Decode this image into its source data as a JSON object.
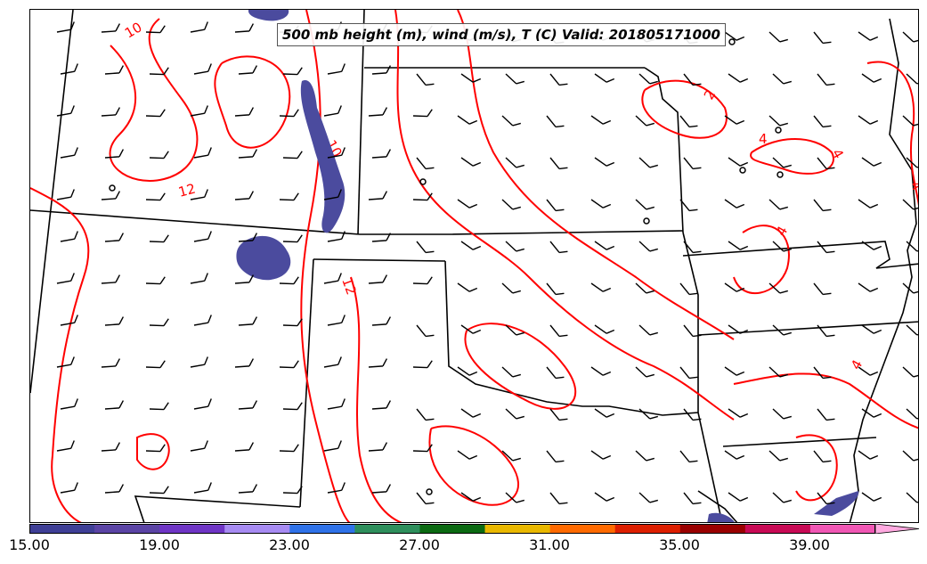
{
  "title": "500 mb height (m), wind (m/s), T (C) Valid: 201805171000",
  "colors": {
    "temperature_contour": "#ff0000",
    "boundary": "#000000",
    "wind_barb": "#000000",
    "shaded_feature": "#4b4b9e"
  },
  "contour_labels": [
    "10",
    "12",
    "10",
    "12",
    "2",
    "4",
    "4",
    "4",
    "4",
    "4"
  ],
  "colorbar": {
    "tick_labels": [
      "15.00",
      "19.00",
      "23.00",
      "27.00",
      "31.00",
      "35.00",
      "39.00"
    ],
    "bins": [
      "#3f3f96",
      "#5b44a5",
      "#6f35c5",
      "#a78bf2",
      "#2f72e8",
      "#2e8f5c",
      "#0b6a12",
      "#e9b800",
      "#ff6a00",
      "#dd1f00",
      "#9a0000",
      "#c80a55",
      "#f057b4",
      "#ffa9e0"
    ],
    "extend": "max"
  }
}
